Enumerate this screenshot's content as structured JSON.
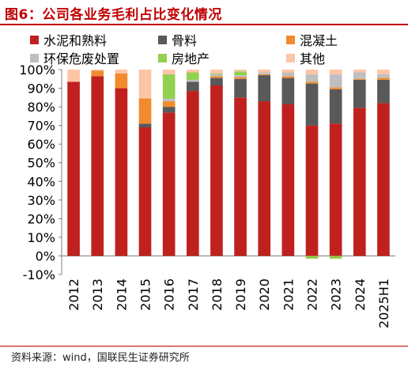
{
  "title": "图6：公司各业务毛利占比变化情况",
  "source": "资料来源：wind，国联民生证券研究所",
  "chart_data": {
    "type": "bar",
    "stacked": true,
    "categories": [
      "2012",
      "2013",
      "2014",
      "2015",
      "2016",
      "2017",
      "2018",
      "2019",
      "2020",
      "2021",
      "2022",
      "2023",
      "2024",
      "2025H1"
    ],
    "ylim": [
      -10,
      100
    ],
    "yticks": [
      -10,
      0,
      10,
      20,
      30,
      40,
      50,
      60,
      70,
      80,
      90,
      100
    ],
    "yunit": "%",
    "legend_position": "top",
    "grid": false,
    "series": [
      {
        "name": "水泥和熟料",
        "color": "#c0211f",
        "values": [
          93.5,
          96.5,
          90,
          69,
          77,
          88.5,
          91.5,
          85,
          83,
          81.5,
          70,
          71,
          79.5,
          82
        ]
      },
      {
        "name": "骨料",
        "color": "#595959",
        "values": [
          0,
          0,
          0,
          2,
          3,
          5,
          4,
          10,
          14,
          14,
          22.5,
          18.5,
          15,
          12.5
        ]
      },
      {
        "name": "混凝土",
        "color": "#f28a2e",
        "values": [
          0,
          3,
          8,
          13.5,
          3,
          0,
          1,
          1,
          0.5,
          1,
          1,
          1,
          0.5,
          1
        ]
      },
      {
        "name": "环保危废处置",
        "color": "#bfbfbf",
        "values": [
          0,
          0,
          0,
          0,
          1.5,
          1,
          1,
          1,
          1,
          2,
          4,
          7,
          3.5,
          2
        ]
      },
      {
        "name": "房地产",
        "color": "#92d050",
        "values": [
          0,
          0,
          0,
          0,
          13,
          4,
          0.5,
          2,
          0,
          0,
          -1.5,
          -1.5,
          0,
          0
        ]
      },
      {
        "name": "其他",
        "color": "#fcc5a6",
        "values": [
          6.5,
          0.5,
          2,
          15.5,
          2.5,
          1.5,
          2,
          1,
          1.5,
          1.5,
          2.5,
          2.5,
          1.5,
          2.5
        ]
      }
    ]
  }
}
